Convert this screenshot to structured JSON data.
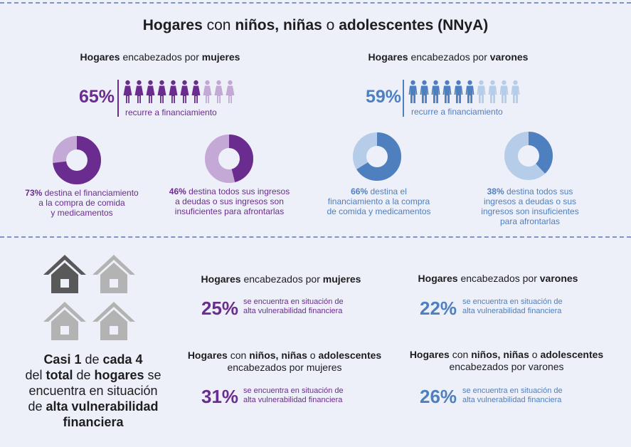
{
  "title": {
    "bold1": "Hogares",
    "rest1": " con ",
    "bold2": "niños, niñas",
    "rest2": " o ",
    "bold3": "adolescentes (NNyA)"
  },
  "colors": {
    "purple": "#6a2c8e",
    "purple_light": "#c4a9d6",
    "blue": "#4e7fbf",
    "blue_light": "#b5cde9",
    "house_dark": "#595959",
    "house_light": "#b3b3b3"
  },
  "women": {
    "heading": {
      "b1": "Hogares",
      "t1": " encabezados por ",
      "b2": "mujeres"
    },
    "pct": "65%",
    "pct_value": 0.65,
    "recurre": "recurre a financiamiento",
    "icon_name": "woman-figure-icon",
    "donut1": {
      "value": 0.73,
      "pct": "73%",
      "l1": " destina el financiamiento",
      "l2": "a la compra de comida",
      "l3": "y medicamentos"
    },
    "donut2": {
      "value": 0.46,
      "pct": "46%",
      "l1": " destina todos sus ingresos",
      "l2": "a deudas o sus ingresos son",
      "l3": "insuficientes para afrontarlas"
    }
  },
  "men": {
    "heading": {
      "b1": "Hogares",
      "t1": " encabezados por ",
      "b2": "varones"
    },
    "pct": "59%",
    "pct_value": 0.59,
    "recurre": "recurre a financiamiento",
    "icon_name": "man-figure-icon",
    "donut1": {
      "value": 0.66,
      "pct": "66%",
      "l1": " destina el",
      "l2": "financiamiento a la compra",
      "l3": "de comida y medicamentos"
    },
    "donut2": {
      "value": 0.38,
      "pct": "38%",
      "l1": " destina todos sus",
      "l2": "ingresos a deudas o sus",
      "l3": "ingresos son insuficientes",
      "l4": "para afrontarlas"
    }
  },
  "bottom": {
    "casi": {
      "b1": "Casi 1",
      "t1": " de ",
      "b2": "cada 4",
      "l2a": "del ",
      "l2b": "total",
      "l2c": " de ",
      "l2d": "hogares",
      "l2e": " se",
      "l3": "encuentra en situación",
      "l4a": "de ",
      "l4b": "alta vulnerabilidad",
      "l5": "financiera"
    },
    "house_fraction": "1 de cada 4",
    "w_all": {
      "h_b1": "Hogares",
      "h_t1": " encabezados por ",
      "h_b2": "mujeres",
      "pct": "25%",
      "l1": "se encuentra en situación de",
      "l2": "alta vulnerabilidad financiera"
    },
    "m_all": {
      "h_b1": "Hogares",
      "h_t1": " encabezados por ",
      "h_b2": "varones",
      "pct": "22%",
      "l1": "se encuentra en situación de",
      "l2": "alta vulnerabilidad financiera"
    },
    "w_nnya": {
      "h_b1": "Hogares",
      "h_t1": " con ",
      "h_b2": "niños, niñas",
      "h_t2": " o ",
      "h_b3": "adolescentes",
      "h_l2": "encabezados por mujeres",
      "pct": "31%",
      "l1": "se encuentra en situación de",
      "l2": "alta vulnerabilidad financiera"
    },
    "m_nnya": {
      "h_b1": "Hogares",
      "h_t1": " con ",
      "h_b2": "niños, niñas",
      "h_t2": " o ",
      "h_b3": "adolescentes",
      "h_l2": "encabezados por varones",
      "pct": "26%",
      "l1": "se encuentra en situación de",
      "l2": "alta vulnerabilidad financiera"
    }
  }
}
